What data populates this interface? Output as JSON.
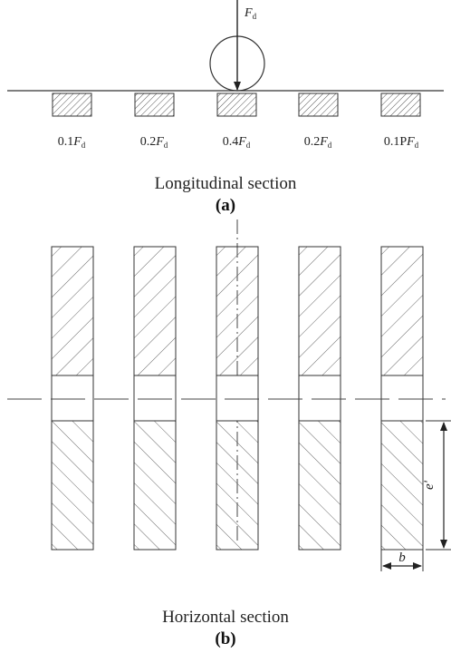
{
  "load": {
    "symbol": "F",
    "subscript": "d"
  },
  "wheel_loads": [
    {
      "coef": "0.1",
      "symbol": "F",
      "subscript": "d"
    },
    {
      "coef": "0.2",
      "symbol": "F",
      "subscript": "d"
    },
    {
      "coef": "0.4",
      "symbol": "F",
      "subscript": "d"
    },
    {
      "coef": "0.2",
      "symbol": "F",
      "subscript": "d"
    },
    {
      "coef": "0.1P",
      "symbol": "F",
      "subscript": "d"
    }
  ],
  "captions": {
    "a_title": "Longitudinal section",
    "a_label": "(a)",
    "b_title": "Horizontal section",
    "b_label": "(b)"
  },
  "dimensions": {
    "e_prime": "e'",
    "b": "b"
  },
  "colors": {
    "line": "#333333",
    "hatch": "#555555"
  }
}
